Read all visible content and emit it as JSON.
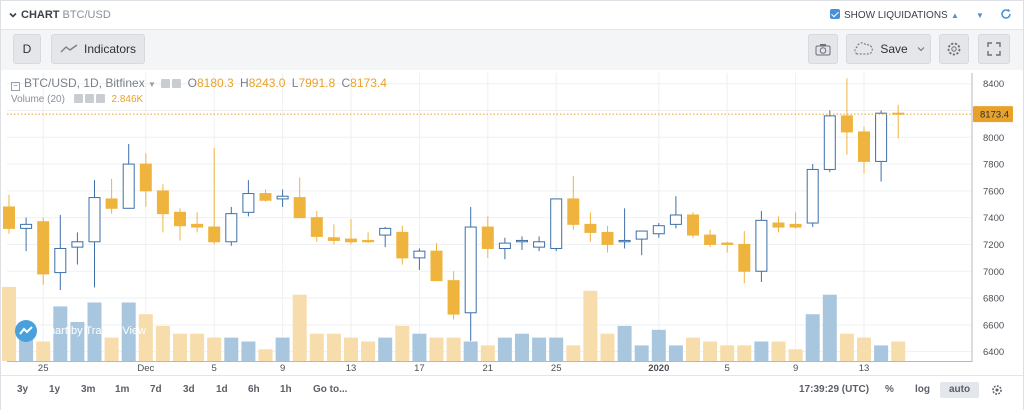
{
  "header": {
    "chart_label": "CHART",
    "pair": "BTC/USD",
    "liquidations_label": "SHOW LIQUIDATIONS",
    "liquidations_checked": true
  },
  "toolbar": {
    "interval": "D",
    "indicators": "Indicators",
    "save": "Save"
  },
  "legend": {
    "symbol": "BTC/USD, 1D, Bitfinex",
    "o_label": "O",
    "o": "8180.3",
    "h_label": "H",
    "h": "8243.0",
    "l_label": "L",
    "l": "7991.8",
    "c_label": "C",
    "c": "8173.4",
    "volume_label": "Volume (20)",
    "volume_value": "2.846K"
  },
  "watermark": "Chart by TradingView",
  "bottom": {
    "ranges": [
      "3y",
      "1y",
      "3m",
      "1m",
      "7d",
      "3d",
      "1d",
      "6h",
      "1h"
    ],
    "goto": "Go to...",
    "time": "17:39:29 (UTC)",
    "percent": "%",
    "log": "log",
    "auto": "auto"
  },
  "colors": {
    "up": "#3e6fa8",
    "down": "#efb43e",
    "vol_up": "#a9c6df",
    "vol_down": "#f7dcac",
    "price_line": "#e8a22b"
  },
  "chart_data": {
    "type": "candlestick",
    "y_ticks": [
      6400,
      6600,
      6800,
      7000,
      7200,
      7400,
      7600,
      7800,
      8000,
      8200,
      8400
    ],
    "ylim": [
      6330,
      8480
    ],
    "x_tick_labels": [
      {
        "label": "25",
        "index": 2
      },
      {
        "label": "Dec",
        "index": 8
      },
      {
        "label": "5",
        "index": 12
      },
      {
        "label": "9",
        "index": 16
      },
      {
        "label": "13",
        "index": 20
      },
      {
        "label": "17",
        "index": 24
      },
      {
        "label": "21",
        "index": 28
      },
      {
        "label": "25",
        "index": 32
      },
      {
        "label": "2020",
        "index": 38
      },
      {
        "label": "5",
        "index": 42
      },
      {
        "label": "9",
        "index": 46
      },
      {
        "label": "13",
        "index": 50
      }
    ],
    "current_price": 8173.4,
    "candles": [
      {
        "o": 7480,
        "h": 7570,
        "l": 7280,
        "c": 7320
      },
      {
        "o": 7320,
        "h": 7400,
        "l": 7150,
        "c": 7350
      },
      {
        "o": 7370,
        "h": 7400,
        "l": 6900,
        "c": 6980
      },
      {
        "o": 6990,
        "h": 7420,
        "l": 6860,
        "c": 7170
      },
      {
        "o": 7180,
        "h": 7290,
        "l": 7050,
        "c": 7220
      },
      {
        "o": 7220,
        "h": 7680,
        "l": 6880,
        "c": 7550
      },
      {
        "o": 7540,
        "h": 7690,
        "l": 7430,
        "c": 7470
      },
      {
        "o": 7470,
        "h": 7950,
        "l": 7470,
        "c": 7800
      },
      {
        "o": 7800,
        "h": 7880,
        "l": 7480,
        "c": 7600
      },
      {
        "o": 7600,
        "h": 7650,
        "l": 7290,
        "c": 7430
      },
      {
        "o": 7440,
        "h": 7470,
        "l": 7230,
        "c": 7340
      },
      {
        "o": 7350,
        "h": 7440,
        "l": 7290,
        "c": 7330
      },
      {
        "o": 7330,
        "h": 7920,
        "l": 7200,
        "c": 7220
      },
      {
        "o": 7220,
        "h": 7480,
        "l": 7190,
        "c": 7430
      },
      {
        "o": 7440,
        "h": 7680,
        "l": 7410,
        "c": 7580
      },
      {
        "o": 7580,
        "h": 7610,
        "l": 7520,
        "c": 7530
      },
      {
        "o": 7540,
        "h": 7610,
        "l": 7480,
        "c": 7560
      },
      {
        "o": 7550,
        "h": 7700,
        "l": 7420,
        "c": 7400
      },
      {
        "o": 7400,
        "h": 7450,
        "l": 7220,
        "c": 7260
      },
      {
        "o": 7250,
        "h": 7350,
        "l": 7200,
        "c": 7230
      },
      {
        "o": 7240,
        "h": 7390,
        "l": 7200,
        "c": 7220
      },
      {
        "o": 7230,
        "h": 7290,
        "l": 7210,
        "c": 7220
      },
      {
        "o": 7270,
        "h": 7330,
        "l": 7180,
        "c": 7320
      },
      {
        "o": 7290,
        "h": 7340,
        "l": 7050,
        "c": 7100
      },
      {
        "o": 7100,
        "h": 7170,
        "l": 7010,
        "c": 7150
      },
      {
        "o": 7150,
        "h": 7210,
        "l": 6950,
        "c": 6930
      },
      {
        "o": 6930,
        "h": 7000,
        "l": 6640,
        "c": 6680
      },
      {
        "o": 6690,
        "h": 7480,
        "l": 6480,
        "c": 7330
      },
      {
        "o": 7330,
        "h": 7410,
        "l": 7100,
        "c": 7170
      },
      {
        "o": 7170,
        "h": 7250,
        "l": 7090,
        "c": 7210
      },
      {
        "o": 7220,
        "h": 7260,
        "l": 7160,
        "c": 7230
      },
      {
        "o": 7180,
        "h": 7260,
        "l": 7150,
        "c": 7220
      },
      {
        "o": 7170,
        "h": 7540,
        "l": 7150,
        "c": 7540
      },
      {
        "o": 7540,
        "h": 7710,
        "l": 7310,
        "c": 7350
      },
      {
        "o": 7350,
        "h": 7440,
        "l": 7220,
        "c": 7290
      },
      {
        "o": 7290,
        "h": 7340,
        "l": 7140,
        "c": 7200
      },
      {
        "o": 7220,
        "h": 7470,
        "l": 7170,
        "c": 7230
      },
      {
        "o": 7240,
        "h": 7300,
        "l": 7120,
        "c": 7300
      },
      {
        "o": 7280,
        "h": 7360,
        "l": 7250,
        "c": 7340
      },
      {
        "o": 7350,
        "h": 7560,
        "l": 7320,
        "c": 7420
      },
      {
        "o": 7420,
        "h": 7440,
        "l": 7250,
        "c": 7270
      },
      {
        "o": 7270,
        "h": 7310,
        "l": 7180,
        "c": 7200
      },
      {
        "o": 7210,
        "h": 7220,
        "l": 7140,
        "c": 7200
      },
      {
        "o": 7200,
        "h": 7300,
        "l": 6910,
        "c": 7000
      },
      {
        "o": 7000,
        "h": 7450,
        "l": 6920,
        "c": 7380
      },
      {
        "o": 7360,
        "h": 7410,
        "l": 7290,
        "c": 7330
      },
      {
        "o": 7350,
        "h": 7440,
        "l": 7320,
        "c": 7330
      },
      {
        "o": 7360,
        "h": 7800,
        "l": 7330,
        "c": 7760
      },
      {
        "o": 7760,
        "h": 8200,
        "l": 7740,
        "c": 8160
      },
      {
        "o": 8160,
        "h": 8440,
        "l": 7870,
        "c": 8040
      },
      {
        "o": 8040,
        "h": 8080,
        "l": 7730,
        "c": 7820
      },
      {
        "o": 7820,
        "h": 8200,
        "l": 7670,
        "c": 8180
      },
      {
        "o": 8180,
        "h": 8243,
        "l": 7992,
        "c": 8173
      }
    ],
    "volume": [
      19,
      7,
      5,
      14,
      10,
      15,
      6,
      15,
      12,
      9,
      7,
      7,
      6,
      6,
      5,
      3,
      6,
      17,
      7,
      7,
      6,
      5,
      6,
      9,
      7,
      6,
      6,
      5,
      4,
      6,
      7,
      6,
      6,
      4,
      18,
      7,
      9,
      4,
      8,
      4,
      6,
      5,
      4,
      4,
      5,
      5,
      3,
      12,
      17,
      7,
      6,
      4,
      5
    ]
  }
}
